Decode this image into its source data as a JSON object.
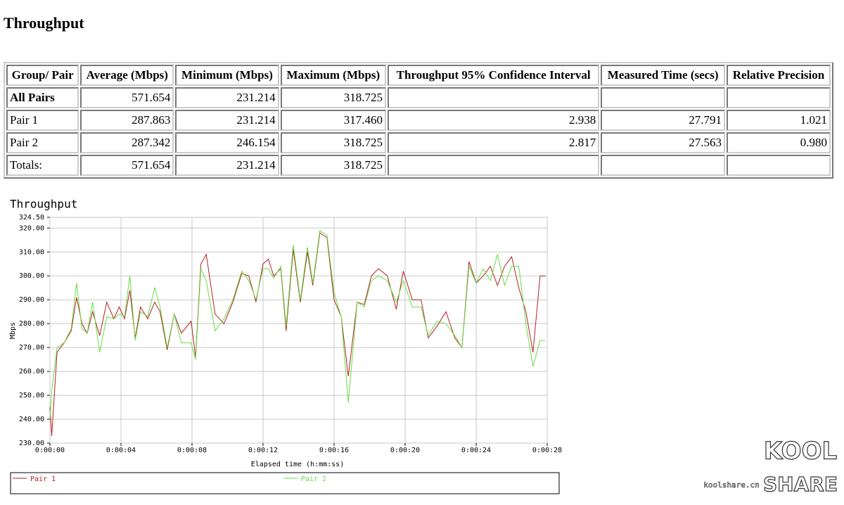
{
  "header": {
    "title": "Throughput"
  },
  "table": {
    "columns": [
      "Group/ Pair",
      "Average (Mbps)",
      "Minimum (Mbps)",
      "Maximum (Mbps)",
      "Throughput 95% Confidence Interval",
      "Measured Time (secs)",
      "Relative Precision"
    ],
    "rows": [
      [
        "All Pairs",
        "571.654",
        "231.214",
        "318.725",
        null,
        null,
        null
      ],
      [
        "Pair 1",
        "287.863",
        "231.214",
        "317.460",
        "2.938",
        "27.791",
        "1.021"
      ],
      [
        "Pair 2",
        "287.342",
        "246.154",
        "318.725",
        "2.817",
        "27.563",
        "0.980"
      ],
      [
        "Totals:",
        "571.654",
        "231.214",
        "318.725",
        null,
        null,
        null
      ]
    ]
  },
  "chart_data": {
    "type": "line",
    "title": "Throughput",
    "x_label": "Elapsed time (h:mm:ss)",
    "y_label": "Mbps",
    "grid": true,
    "xlim": [
      0,
      28
    ],
    "xticks": [
      {
        "value": 0,
        "label": "0:00:00"
      },
      {
        "value": 4,
        "label": "0:00:04"
      },
      {
        "value": 8,
        "label": "0:00:08"
      },
      {
        "value": 12,
        "label": "0:00:12"
      },
      {
        "value": 16,
        "label": "0:00:16"
      },
      {
        "value": 20,
        "label": "0:00:20"
      },
      {
        "value": 24,
        "label": "0:00:24"
      },
      {
        "value": 28,
        "label": "0:00:28"
      }
    ],
    "ylim": [
      230,
      324.5
    ],
    "yticks": [
      {
        "value": 230,
        "label": "230.00"
      },
      {
        "value": 240,
        "label": "240.00"
      },
      {
        "value": 250,
        "label": "250.00"
      },
      {
        "value": 260,
        "label": "260.00"
      },
      {
        "value": 270,
        "label": "270.00"
      },
      {
        "value": 280,
        "label": "280.00"
      },
      {
        "value": 290,
        "label": "290.00"
      },
      {
        "value": 300,
        "label": "300.00"
      },
      {
        "value": 310,
        "label": "310.00"
      },
      {
        "value": 320,
        "label": "320.00"
      },
      {
        "value": 324.5,
        "label": "324.50"
      }
    ],
    "x": [
      0,
      0.1,
      0.4,
      0.8,
      1.2,
      1.5,
      1.8,
      2.1,
      2.4,
      2.8,
      3.2,
      3.6,
      3.9,
      4.2,
      4.5,
      4.8,
      5.1,
      5.5,
      5.9,
      6.2,
      6.6,
      7.0,
      7.4,
      7.95,
      8.2,
      8.5,
      8.8,
      9.3,
      9.8,
      10.3,
      10.8,
      11.2,
      11.6,
      12.0,
      12.3,
      12.6,
      13.0,
      13.3,
      13.7,
      14.1,
      14.5,
      14.8,
      15.2,
      15.6,
      16.0,
      16.4,
      16.8,
      17.3,
      17.7,
      18.1,
      18.5,
      19.0,
      19.5,
      19.9,
      20.4,
      20.9,
      21.3,
      21.8,
      22.3,
      22.8,
      23.2,
      23.6,
      24.0,
      24.4,
      24.8,
      25.2,
      25.6,
      26.0,
      26.4,
      26.8,
      27.2,
      27.6,
      27.9
    ],
    "series": [
      {
        "name": "Pair 1",
        "color": "#b22222",
        "values": [
          245,
          233,
          268,
          272,
          277,
          291,
          280,
          276,
          285,
          275,
          289,
          282,
          287,
          282,
          294,
          274,
          287,
          282,
          289,
          285,
          269,
          284,
          276,
          281,
          266,
          305,
          309,
          284,
          280,
          289,
          301,
          300,
          289,
          305,
          307,
          300,
          303,
          277,
          311,
          289,
          310,
          296,
          318,
          316,
          290,
          283,
          258,
          289,
          288,
          300,
          303,
          300,
          286,
          302,
          290,
          290,
          274,
          279,
          285,
          274,
          270,
          306,
          297,
          300,
          304,
          296,
          304,
          308,
          295,
          285,
          268,
          300,
          300
        ]
      },
      {
        "name": "Pair 2",
        "color": "#66dd44",
        "values": [
          240,
          252,
          270,
          272,
          278,
          297,
          278,
          276,
          289,
          268,
          283,
          282,
          284,
          283,
          300,
          273,
          285,
          283,
          295,
          287,
          270,
          284,
          272,
          272,
          265,
          303,
          298,
          277,
          282,
          290,
          302,
          298,
          290,
          303,
          303,
          299,
          304,
          279,
          313,
          290,
          312,
          297,
          319,
          317,
          293,
          283,
          247,
          289,
          287,
          298,
          300,
          298,
          289,
          298,
          287,
          287,
          275,
          281,
          280,
          275,
          270,
          304,
          297,
          303,
          298,
          309,
          296,
          304,
          304,
          280,
          262,
          273,
          273
        ]
      }
    ]
  },
  "watermark": {
    "site": "koolshare.cn",
    "logo_top": "KOOL",
    "logo_bottom": "SHARE"
  }
}
